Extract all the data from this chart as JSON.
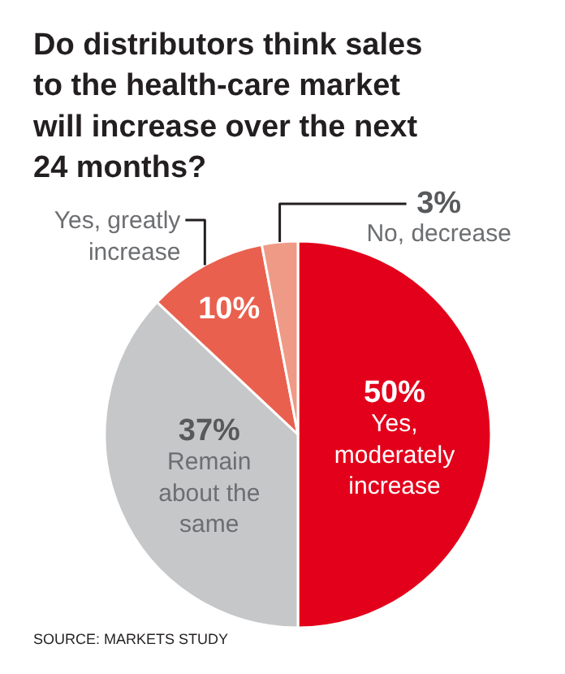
{
  "chart_data": {
    "type": "pie",
    "title": "Do distributors think sales to the health-care market will increase over the next 24 months?",
    "categories": [
      "Yes, moderately increase",
      "Remain about the same",
      "Yes, greatly increase",
      "No, decrease"
    ],
    "values": [
      50,
      37,
      10,
      3
    ],
    "colors": [
      "#e3001b",
      "#c6c7c9",
      "#e9604e",
      "#ef9a86"
    ],
    "value_labels": [
      "50%",
      "37%",
      "10%",
      "3%"
    ],
    "annotations": [
      "SOURCE: MARKETS STUDY"
    ]
  }
}
